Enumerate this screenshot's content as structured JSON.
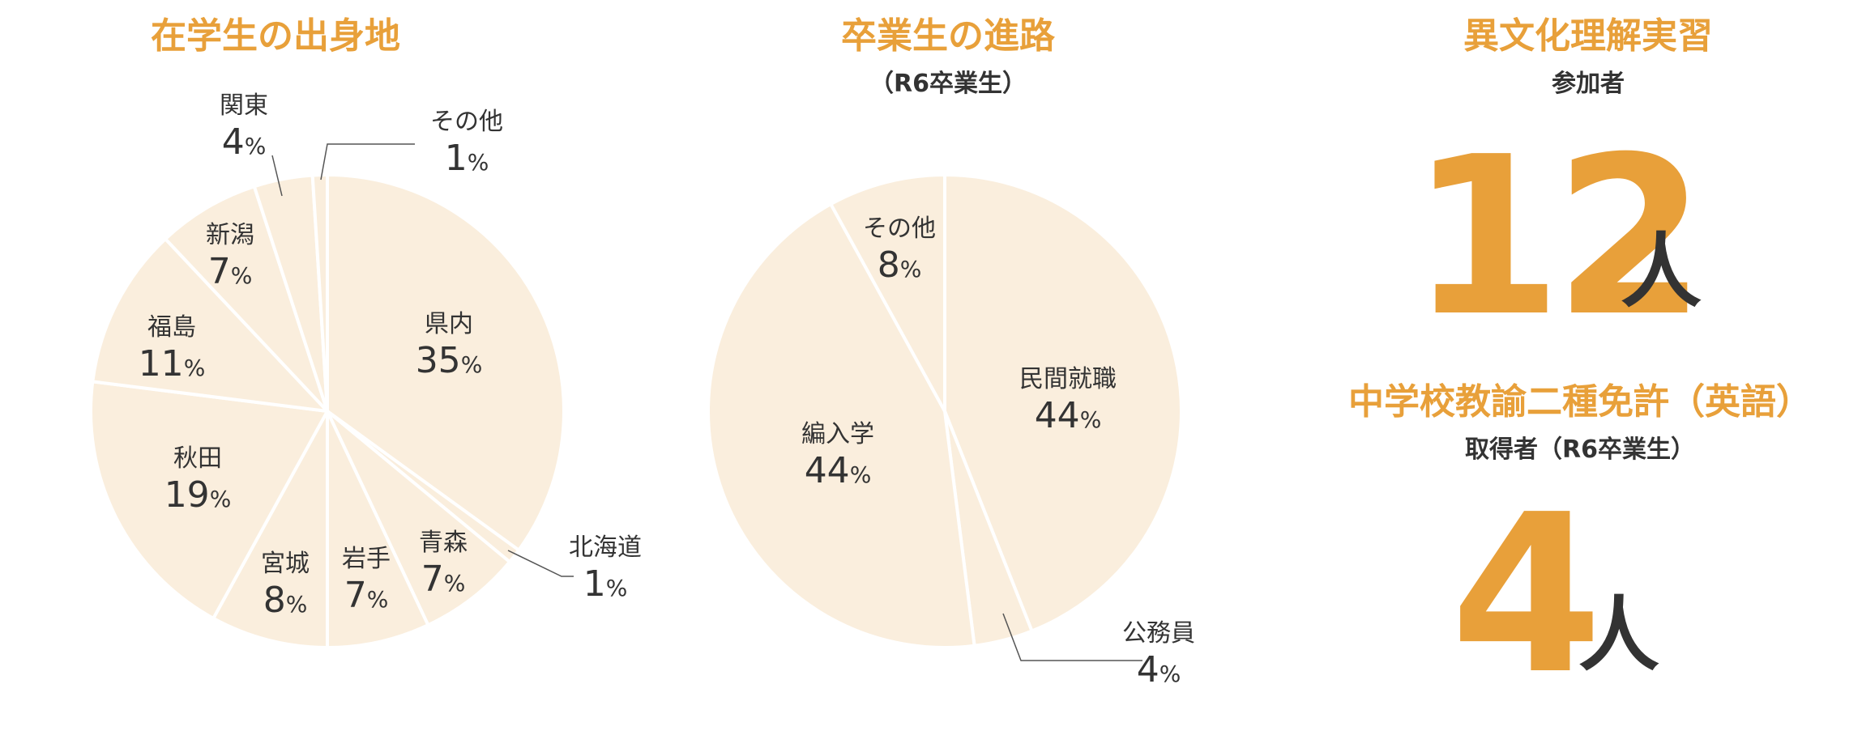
{
  "chart_data": [
    {
      "type": "pie",
      "title": "在学生の出身地",
      "unit": "%",
      "slices": [
        {
          "label": "県内",
          "value": 35
        },
        {
          "label": "北海道",
          "value": 1
        },
        {
          "label": "青森",
          "value": 7
        },
        {
          "label": "岩手",
          "value": 7
        },
        {
          "label": "宮城",
          "value": 8
        },
        {
          "label": "秋田",
          "value": 19
        },
        {
          "label": "福島",
          "value": 11
        },
        {
          "label": "新潟",
          "value": 7
        },
        {
          "label": "関東",
          "value": 4
        },
        {
          "label": "その他",
          "value": 1
        }
      ],
      "fill_color": "#faeedd",
      "stroke_color": "#ffffff"
    },
    {
      "type": "pie",
      "title": "卒業生の進路",
      "subtitle": "（R6卒業生）",
      "unit": "%",
      "slices": [
        {
          "label": "民間就職",
          "value": 44
        },
        {
          "label": "公務員",
          "value": 4
        },
        {
          "label": "編入学",
          "value": 44
        },
        {
          "label": "その他",
          "value": 8
        }
      ],
      "fill_color": "#faeedd",
      "stroke_color": "#ffffff"
    }
  ],
  "stats": [
    {
      "title": "異文化理解実習",
      "subtitle": "参加者",
      "value": "12",
      "unit": "人"
    },
    {
      "title": "中学校教諭二種免許（英語）",
      "subtitle": "取得者（R6卒業生）",
      "value": "4",
      "unit": "人"
    }
  ],
  "colors": {
    "accent": "#e8a03a",
    "text": "#333333",
    "pie_fill": "#faeedd"
  }
}
